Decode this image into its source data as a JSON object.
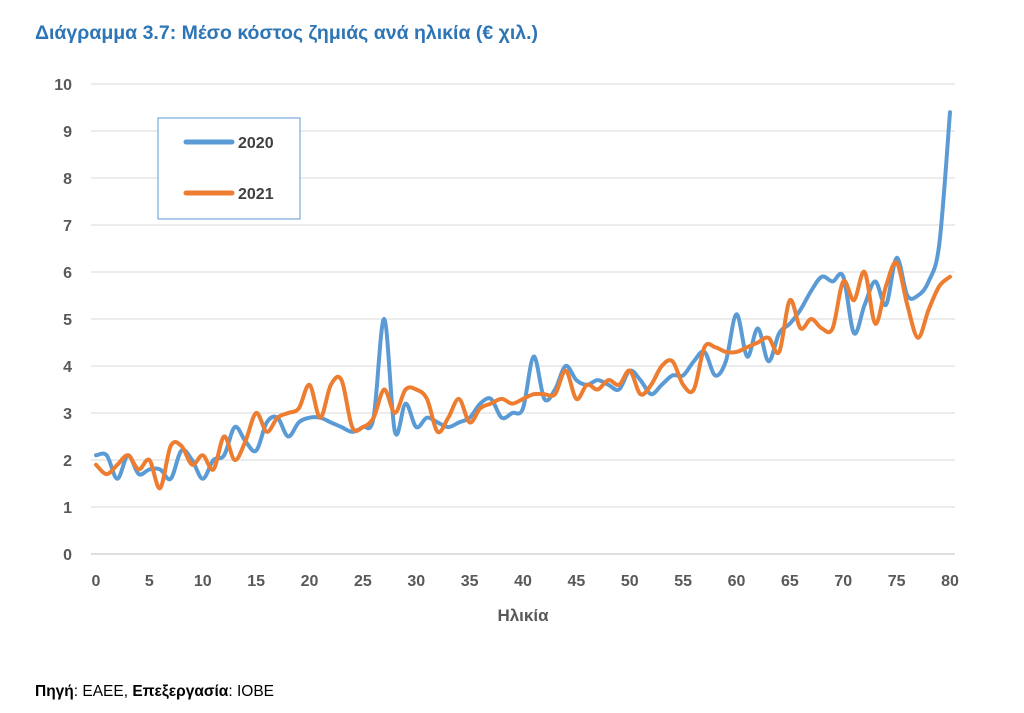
{
  "title": "Διάγραμμα 3.7: Μέσο κόστος ζημιάς ανά ηλικία (€ χιλ.)",
  "source": {
    "label1": "Πηγή",
    "value1": ": ΕΑΕΕ, ",
    "label2": "Επεξεργασία",
    "value2": ": ΙΟΒΕ"
  },
  "colors": {
    "title": "#2E75B6",
    "series_2020": "#5B9BD5",
    "series_2021": "#ED7D31",
    "grid": "#D9D9D9"
  },
  "chart_data": {
    "type": "line",
    "title": "Διάγραμμα 3.7: Μέσο κόστος ζημιάς ανά ηλικία (€ χιλ.)",
    "xlabel": "Ηλικία",
    "ylabel": "",
    "xlim": [
      0,
      80
    ],
    "ylim": [
      0,
      10
    ],
    "xticks": [
      0,
      5,
      10,
      15,
      20,
      25,
      30,
      35,
      40,
      45,
      50,
      55,
      60,
      65,
      70,
      75,
      80
    ],
    "yticks": [
      0,
      1,
      2,
      3,
      4,
      5,
      6,
      7,
      8,
      9,
      10
    ],
    "grid": "horizontal",
    "legend_position": "top-left",
    "x": [
      0,
      1,
      2,
      3,
      4,
      5,
      6,
      7,
      8,
      9,
      10,
      11,
      12,
      13,
      14,
      15,
      16,
      17,
      18,
      19,
      20,
      21,
      22,
      23,
      24,
      25,
      26,
      27,
      28,
      29,
      30,
      31,
      32,
      33,
      34,
      35,
      36,
      37,
      38,
      39,
      40,
      41,
      42,
      43,
      44,
      45,
      46,
      47,
      48,
      49,
      50,
      51,
      52,
      53,
      54,
      55,
      56,
      57,
      58,
      59,
      60,
      61,
      62,
      63,
      64,
      65,
      66,
      67,
      68,
      69,
      70,
      71,
      72,
      73,
      74,
      75,
      76,
      77,
      78,
      79,
      80
    ],
    "series": [
      {
        "name": "2020",
        "values": [
          2.1,
          2.1,
          1.6,
          2.1,
          1.7,
          1.8,
          1.8,
          1.6,
          2.2,
          2.0,
          1.6,
          2.0,
          2.1,
          2.7,
          2.4,
          2.2,
          2.8,
          2.9,
          2.5,
          2.8,
          2.9,
          2.9,
          2.8,
          2.7,
          2.6,
          2.7,
          2.9,
          5.0,
          2.6,
          3.2,
          2.7,
          2.9,
          2.8,
          2.7,
          2.8,
          2.9,
          3.2,
          3.3,
          2.9,
          3.0,
          3.1,
          4.2,
          3.3,
          3.5,
          4.0,
          3.7,
          3.6,
          3.7,
          3.6,
          3.5,
          3.9,
          3.7,
          3.4,
          3.6,
          3.8,
          3.8,
          4.1,
          4.3,
          3.8,
          4.1,
          5.1,
          4.2,
          4.8,
          4.1,
          4.7,
          4.9,
          5.2,
          5.6,
          5.9,
          5.8,
          5.9,
          4.7,
          5.3,
          5.8,
          5.3,
          6.3,
          5.5,
          5.5,
          5.8,
          6.6,
          9.4
        ]
      },
      {
        "name": "2021",
        "values": [
          1.9,
          1.7,
          1.9,
          2.1,
          1.8,
          2.0,
          1.4,
          2.3,
          2.3,
          1.9,
          2.1,
          1.8,
          2.5,
          2.0,
          2.4,
          3.0,
          2.6,
          2.9,
          3.0,
          3.1,
          3.6,
          2.9,
          3.6,
          3.7,
          2.7,
          2.7,
          2.9,
          3.5,
          3.0,
          3.5,
          3.5,
          3.3,
          2.6,
          2.9,
          3.3,
          2.8,
          3.1,
          3.2,
          3.3,
          3.2,
          3.3,
          3.4,
          3.4,
          3.4,
          3.9,
          3.3,
          3.6,
          3.5,
          3.7,
          3.6,
          3.9,
          3.4,
          3.6,
          4.0,
          4.1,
          3.6,
          3.5,
          4.4,
          4.4,
          4.3,
          4.3,
          4.4,
          4.5,
          4.6,
          4.3,
          5.4,
          4.8,
          5.0,
          4.8,
          4.8,
          5.8,
          5.4,
          6.0,
          4.9,
          5.7,
          6.2,
          5.3,
          4.6,
          5.2,
          5.7,
          5.9
        ]
      }
    ]
  }
}
